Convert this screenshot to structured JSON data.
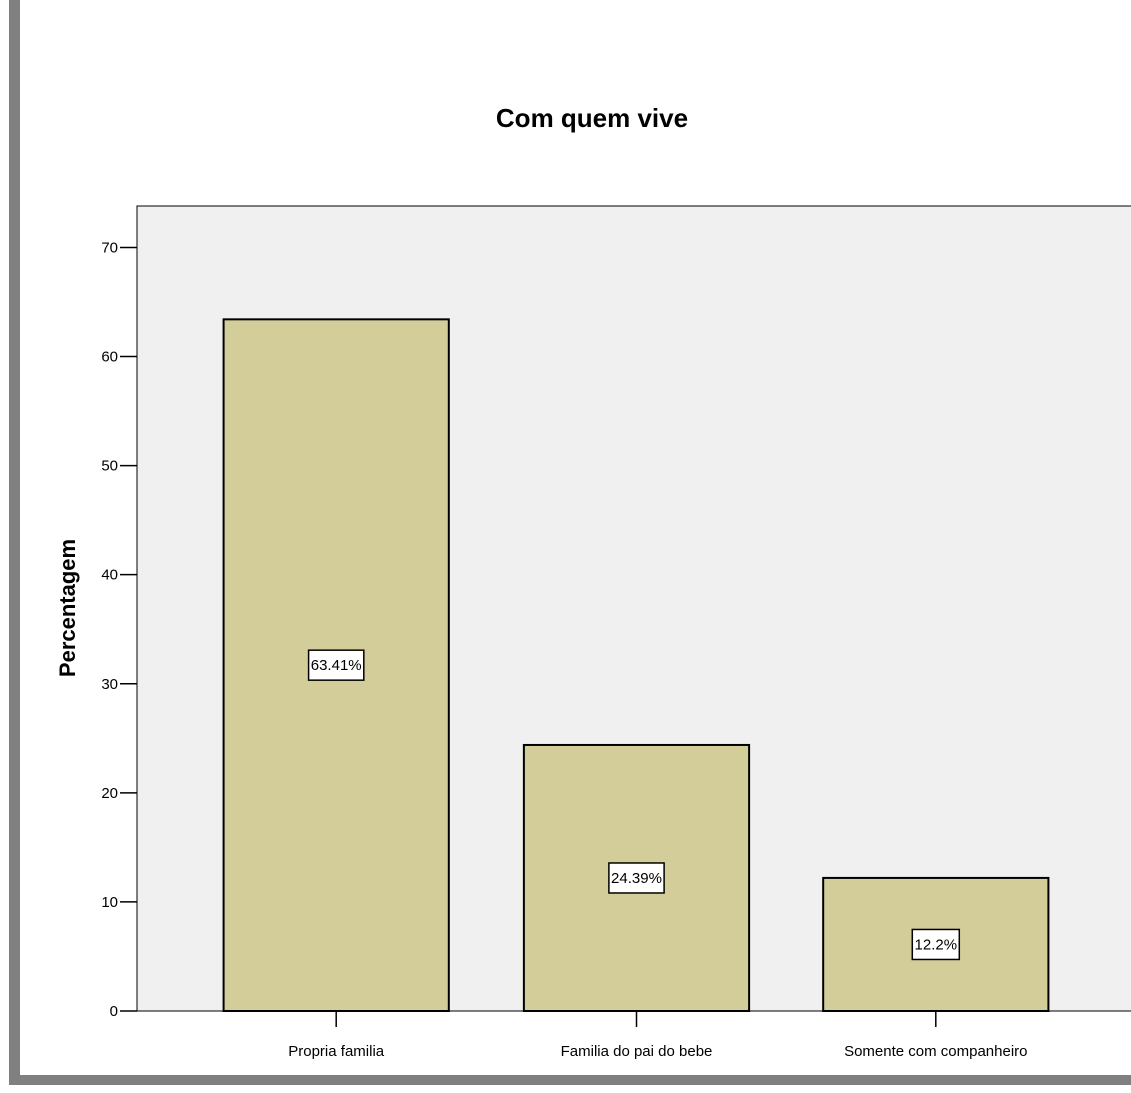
{
  "chart_data": {
    "type": "bar",
    "title": "Com quem vive",
    "xlabel": "",
    "ylabel": "Percentagem",
    "categories": [
      "Propria familia",
      "Familia do pai do bebe",
      "Somente com companheiro"
    ],
    "values": [
      63.41,
      24.39,
      12.2
    ],
    "data_labels": [
      "63.41%",
      "24.39%",
      "12.2%"
    ],
    "ylim": [
      0,
      73.8
    ],
    "yticks": [
      0,
      10,
      20,
      30,
      40,
      50,
      60,
      70
    ],
    "grid": false,
    "legend": "none",
    "colors": {
      "bar_fill": "#d3ce99",
      "plot_background": "#f0f0f0",
      "frame": "#808080"
    }
  }
}
